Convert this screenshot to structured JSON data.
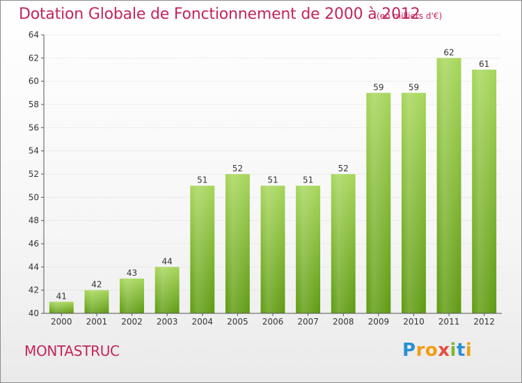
{
  "header": {
    "title": "Dotation Globale de Fonctionnement de 2000 à 2012",
    "subtitle": "(en milliers d'€)"
  },
  "footer": {
    "commune": "MONTASTRUC",
    "logo": {
      "letters": [
        "P",
        "r",
        "o",
        "x",
        "i",
        "t",
        "i"
      ],
      "colors": [
        "#2a8fd6",
        "#f39c12",
        "#f39c12",
        "#e74c3c",
        "#7cb82f",
        "#2a8fd6",
        "#f39c12"
      ]
    }
  },
  "chart_data": {
    "type": "bar",
    "categories": [
      "2000",
      "2001",
      "2002",
      "2003",
      "2004",
      "2005",
      "2006",
      "2007",
      "2008",
      "2009",
      "2010",
      "2011",
      "2012"
    ],
    "values": [
      41,
      42,
      43,
      44,
      51,
      52,
      51,
      51,
      52,
      59,
      59,
      62,
      61
    ],
    "data_labels": [
      "41",
      "42",
      "43",
      "44",
      "51",
      "52",
      "51",
      "51",
      "52",
      "59",
      "59",
      "62",
      "61"
    ],
    "yticks": [
      "40",
      "42",
      "44",
      "46",
      "48",
      "50",
      "52",
      "54",
      "56",
      "58",
      "60",
      "62",
      "64"
    ],
    "ylim": [
      40,
      64
    ],
    "grid": "horizontal",
    "colors": {
      "bar_top": "#a6d65a",
      "bar_bottom": "#5e9a10",
      "grid": "#dcdcdc",
      "axis": "#555555",
      "text": "#333333"
    }
  }
}
